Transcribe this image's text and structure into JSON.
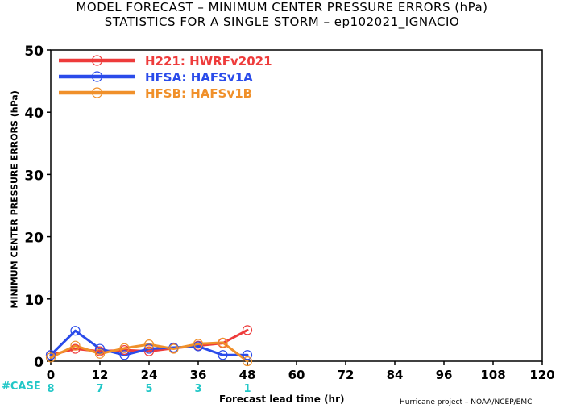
{
  "title_line1": "MODEL FORECAST – MINIMUM CENTER PRESSURE ERRORS (hPa)",
  "title_line2": "STATISTICS FOR A SINGLE STORM – ep102021_IGNACIO",
  "credit": "Hurricane project – NOAA/NCEP/EMC",
  "case_label": "#CASE",
  "colors": {
    "case": "#22c7c7",
    "grid": "#000000"
  },
  "chart_data": {
    "type": "line",
    "xlabel": "Forecast lead time (hr)",
    "ylabel": "MINIMUM CENTER PRESSURE ERRORS (hPa)",
    "xlim": [
      0,
      120
    ],
    "ylim": [
      0,
      50
    ],
    "xticks": [
      0,
      12,
      24,
      36,
      48,
      60,
      72,
      84,
      96,
      108,
      120
    ],
    "yticks": [
      0,
      10,
      20,
      30,
      40,
      50
    ],
    "legend_position": "top-left",
    "series": [
      {
        "name": "H221: HWRFv2021",
        "color": "#ee3b3b",
        "x": [
          0,
          6,
          12,
          18,
          24,
          30,
          36,
          42,
          48
        ],
        "y": [
          1.0,
          2.0,
          1.6,
          1.8,
          1.6,
          2.1,
          2.5,
          2.9,
          5.0
        ]
      },
      {
        "name": "HFSA: HAFSv1A",
        "color": "#2a4bea",
        "x": [
          0,
          6,
          12,
          18,
          24,
          30,
          36,
          42,
          48
        ],
        "y": [
          1.0,
          4.9,
          2.0,
          1.0,
          2.0,
          2.2,
          2.4,
          1.0,
          1.0
        ]
      },
      {
        "name": "HFSB: HAFSv1B",
        "color": "#f0902a",
        "x": [
          0,
          6,
          12,
          18,
          24,
          30,
          36,
          42,
          48
        ],
        "y": [
          0.6,
          2.5,
          1.2,
          2.1,
          2.7,
          2.0,
          2.8,
          3.0,
          0.0
        ]
      }
    ],
    "cases": {
      "x": [
        0,
        12,
        24,
        36,
        48
      ],
      "labels": [
        "8",
        "7",
        "5",
        "3",
        "1"
      ]
    }
  }
}
